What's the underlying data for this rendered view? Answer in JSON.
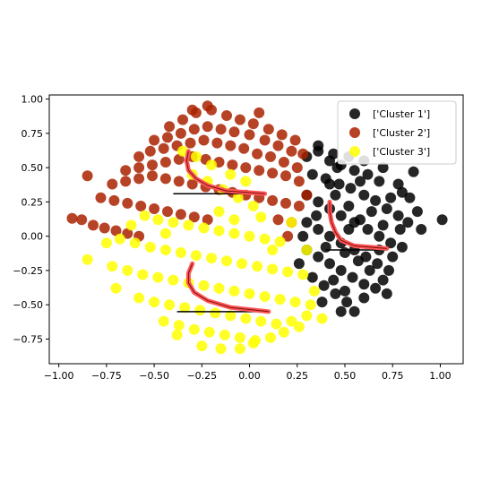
{
  "chart_data": {
    "type": "scatter",
    "title": "",
    "xlabel": "",
    "ylabel": "",
    "xlim": [
      -1.05,
      1.12
    ],
    "ylim": [
      -0.93,
      1.03
    ],
    "xticks": [
      -1.0,
      -0.75,
      -0.5,
      -0.25,
      0.0,
      0.25,
      0.5,
      0.75,
      1.0
    ],
    "xtick_labels": [
      "−1.00",
      "−0.75",
      "−0.50",
      "−0.25",
      "0.00",
      "0.25",
      "0.50",
      "0.75",
      "1.00"
    ],
    "yticks": [
      -0.75,
      -0.5,
      -0.25,
      0.0,
      0.25,
      0.5,
      0.75,
      1.0
    ],
    "ytick_labels": [
      "−0.75",
      "−0.50",
      "−0.25",
      "0.00",
      "0.25",
      "0.50",
      "0.75",
      "1.00"
    ],
    "grid": false,
    "legend_position": "top-right",
    "series": [
      {
        "name": "['Cluster 1']",
        "color": "#000000",
        "points": [
          [
            0.3,
            0.58
          ],
          [
            0.36,
            0.62
          ],
          [
            0.42,
            0.55
          ],
          [
            0.48,
            0.52
          ],
          [
            0.55,
            0.48
          ],
          [
            0.62,
            0.45
          ],
          [
            0.68,
            0.4
          ],
          [
            0.33,
            0.45
          ],
          [
            0.4,
            0.42
          ],
          [
            0.47,
            0.38
          ],
          [
            0.53,
            0.35
          ],
          [
            0.6,
            0.3
          ],
          [
            0.66,
            0.26
          ],
          [
            0.72,
            0.2
          ],
          [
            0.78,
            0.15
          ],
          [
            0.83,
            0.1
          ],
          [
            0.88,
            0.18
          ],
          [
            0.86,
            0.47
          ],
          [
            1.01,
            0.12
          ],
          [
            0.3,
            0.3
          ],
          [
            0.36,
            0.25
          ],
          [
            0.42,
            0.2
          ],
          [
            0.48,
            0.15
          ],
          [
            0.55,
            0.1
          ],
          [
            0.62,
            0.05
          ],
          [
            0.68,
            0.0
          ],
          [
            0.74,
            -0.05
          ],
          [
            0.8,
            -0.08
          ],
          [
            0.3,
            0.1
          ],
          [
            0.36,
            0.05
          ],
          [
            0.42,
            0.0
          ],
          [
            0.48,
            -0.05
          ],
          [
            0.55,
            -0.1
          ],
          [
            0.61,
            -0.15
          ],
          [
            0.67,
            -0.2
          ],
          [
            0.73,
            -0.25
          ],
          [
            0.3,
            -0.1
          ],
          [
            0.36,
            -0.15
          ],
          [
            0.42,
            -0.2
          ],
          [
            0.48,
            -0.25
          ],
          [
            0.54,
            -0.3
          ],
          [
            0.6,
            -0.35
          ],
          [
            0.66,
            -0.38
          ],
          [
            0.33,
            -0.3
          ],
          [
            0.39,
            -0.36
          ],
          [
            0.45,
            -0.42
          ],
          [
            0.51,
            -0.48
          ],
          [
            0.55,
            -0.55
          ],
          [
            0.6,
            -0.45
          ],
          [
            0.7,
            -0.32
          ],
          [
            0.75,
            -0.15
          ],
          [
            0.79,
            0.05
          ],
          [
            0.35,
            0.15
          ],
          [
            0.45,
            0.3
          ],
          [
            0.52,
            0.22
          ],
          [
            0.58,
            0.12
          ],
          [
            0.64,
            0.18
          ],
          [
            0.7,
            0.08
          ],
          [
            0.4,
            -0.08
          ],
          [
            0.5,
            -0.12
          ],
          [
            0.28,
            0.0
          ],
          [
            0.26,
            -0.2
          ],
          [
            0.38,
            -0.48
          ],
          [
            0.46,
            0.5
          ],
          [
            0.58,
            0.4
          ],
          [
            0.52,
            0.05
          ],
          [
            0.44,
            -0.32
          ],
          [
            0.63,
            -0.25
          ],
          [
            0.68,
            -0.1
          ],
          [
            0.74,
            0.28
          ],
          [
            0.8,
            0.32
          ],
          [
            0.57,
            -0.18
          ],
          [
            0.5,
            -0.4
          ],
          [
            0.42,
            0.38
          ],
          [
            0.36,
            0.66
          ],
          [
            0.44,
            0.6
          ],
          [
            0.52,
            0.58
          ],
          [
            0.6,
            0.55
          ],
          [
            0.7,
            0.5
          ],
          [
            0.78,
            0.38
          ],
          [
            0.84,
            0.28
          ],
          [
            0.9,
            0.05
          ],
          [
            0.72,
            -0.42
          ],
          [
            0.48,
            -0.55
          ]
        ]
      },
      {
        "name": "['Cluster 2']",
        "color": "#aa2200",
        "points": [
          [
            -0.42,
            0.8
          ],
          [
            -0.35,
            0.85
          ],
          [
            -0.28,
            0.9
          ],
          [
            -0.2,
            0.92
          ],
          [
            -0.12,
            0.88
          ],
          [
            -0.05,
            0.85
          ],
          [
            0.02,
            0.82
          ],
          [
            0.1,
            0.78
          ],
          [
            0.17,
            0.74
          ],
          [
            0.24,
            0.7
          ],
          [
            -0.5,
            0.7
          ],
          [
            -0.43,
            0.72
          ],
          [
            -0.36,
            0.75
          ],
          [
            -0.29,
            0.78
          ],
          [
            -0.22,
            0.8
          ],
          [
            -0.15,
            0.78
          ],
          [
            -0.08,
            0.76
          ],
          [
            0.0,
            0.74
          ],
          [
            0.08,
            0.7
          ],
          [
            0.15,
            0.66
          ],
          [
            0.22,
            0.62
          ],
          [
            -0.58,
            0.58
          ],
          [
            -0.52,
            0.62
          ],
          [
            -0.45,
            0.64
          ],
          [
            -0.38,
            0.66
          ],
          [
            -0.31,
            0.68
          ],
          [
            -0.24,
            0.7
          ],
          [
            -0.17,
            0.68
          ],
          [
            -0.1,
            0.66
          ],
          [
            -0.03,
            0.64
          ],
          [
            0.04,
            0.6
          ],
          [
            0.11,
            0.58
          ],
          [
            0.18,
            0.54
          ],
          [
            0.25,
            0.5
          ],
          [
            -0.65,
            0.48
          ],
          [
            -0.58,
            0.5
          ],
          [
            -0.51,
            0.52
          ],
          [
            -0.44,
            0.54
          ],
          [
            -0.37,
            0.56
          ],
          [
            -0.3,
            0.58
          ],
          [
            -0.23,
            0.56
          ],
          [
            -0.16,
            0.54
          ],
          [
            -0.09,
            0.52
          ],
          [
            -0.02,
            0.5
          ],
          [
            0.05,
            0.48
          ],
          [
            0.12,
            0.46
          ],
          [
            0.19,
            0.44
          ],
          [
            0.26,
            0.4
          ],
          [
            -0.72,
            0.38
          ],
          [
            -0.65,
            0.4
          ],
          [
            -0.58,
            0.42
          ],
          [
            -0.51,
            0.44
          ],
          [
            -0.44,
            0.42
          ],
          [
            -0.37,
            0.4
          ],
          [
            -0.3,
            0.38
          ],
          [
            -0.23,
            0.36
          ],
          [
            -0.16,
            0.34
          ],
          [
            -0.09,
            0.32
          ],
          [
            -0.02,
            0.3
          ],
          [
            0.05,
            0.28
          ],
          [
            0.12,
            0.26
          ],
          [
            0.19,
            0.24
          ],
          [
            0.26,
            0.22
          ],
          [
            -0.78,
            0.28
          ],
          [
            -0.71,
            0.26
          ],
          [
            -0.64,
            0.24
          ],
          [
            -0.57,
            0.22
          ],
          [
            -0.5,
            0.2
          ],
          [
            -0.43,
            0.18
          ],
          [
            -0.36,
            0.16
          ],
          [
            -0.29,
            0.14
          ],
          [
            -0.22,
            0.12
          ],
          [
            0.15,
            0.12
          ],
          [
            0.22,
            0.1
          ],
          [
            -0.85,
            0.44
          ],
          [
            -0.93,
            0.13
          ],
          [
            -0.88,
            0.12
          ],
          [
            -0.82,
            0.08
          ],
          [
            -0.76,
            0.06
          ],
          [
            -0.7,
            0.04
          ],
          [
            -0.64,
            0.02
          ],
          [
            -0.58,
            0.0
          ],
          [
            -0.3,
            0.92
          ],
          [
            -0.22,
            0.95
          ],
          [
            0.05,
            0.9
          ],
          [
            0.28,
            0.6
          ],
          [
            0.3,
            0.3
          ],
          [
            0.2,
            0.0
          ]
        ]
      },
      {
        "name": "['Cluster 3']",
        "color": "#ffff00",
        "points": [
          [
            -0.35,
            0.62
          ],
          [
            -0.28,
            0.58
          ],
          [
            -0.2,
            0.52
          ],
          [
            -0.1,
            0.45
          ],
          [
            -0.02,
            0.4
          ],
          [
            -0.3,
            0.45
          ],
          [
            -0.22,
            0.4
          ],
          [
            -0.14,
            0.34
          ],
          [
            -0.06,
            0.28
          ],
          [
            0.02,
            0.22
          ],
          [
            -0.55,
            0.15
          ],
          [
            -0.48,
            0.12
          ],
          [
            -0.4,
            0.1
          ],
          [
            -0.32,
            0.08
          ],
          [
            -0.24,
            0.06
          ],
          [
            -0.16,
            0.04
          ],
          [
            -0.08,
            0.02
          ],
          [
            0.0,
            0.0
          ],
          [
            0.08,
            -0.02
          ],
          [
            0.16,
            -0.04
          ],
          [
            -0.75,
            -0.05
          ],
          [
            -0.68,
            -0.02
          ],
          [
            -0.6,
            -0.05
          ],
          [
            -0.52,
            -0.08
          ],
          [
            -0.44,
            -0.1
          ],
          [
            -0.36,
            -0.12
          ],
          [
            -0.28,
            -0.14
          ],
          [
            -0.2,
            -0.16
          ],
          [
            -0.12,
            -0.18
          ],
          [
            -0.04,
            -0.2
          ],
          [
            0.04,
            -0.22
          ],
          [
            0.12,
            -0.24
          ],
          [
            0.2,
            -0.26
          ],
          [
            0.28,
            -0.28
          ],
          [
            -0.85,
            -0.17
          ],
          [
            -0.72,
            -0.22
          ],
          [
            -0.64,
            -0.25
          ],
          [
            -0.56,
            -0.28
          ],
          [
            -0.48,
            -0.3
          ],
          [
            -0.4,
            -0.32
          ],
          [
            -0.32,
            -0.34
          ],
          [
            -0.24,
            -0.36
          ],
          [
            -0.16,
            -0.38
          ],
          [
            -0.08,
            -0.4
          ],
          [
            0.0,
            -0.42
          ],
          [
            0.08,
            -0.44
          ],
          [
            0.16,
            -0.46
          ],
          [
            0.24,
            -0.48
          ],
          [
            0.32,
            -0.5
          ],
          [
            -0.58,
            -0.45
          ],
          [
            -0.5,
            -0.48
          ],
          [
            -0.42,
            -0.5
          ],
          [
            -0.34,
            -0.52
          ],
          [
            -0.26,
            -0.54
          ],
          [
            -0.18,
            -0.56
          ],
          [
            -0.1,
            -0.58
          ],
          [
            -0.02,
            -0.6
          ],
          [
            0.06,
            -0.62
          ],
          [
            0.14,
            -0.64
          ],
          [
            0.22,
            -0.62
          ],
          [
            0.3,
            -0.58
          ],
          [
            -0.45,
            -0.62
          ],
          [
            -0.37,
            -0.65
          ],
          [
            -0.29,
            -0.68
          ],
          [
            -0.21,
            -0.7
          ],
          [
            -0.13,
            -0.72
          ],
          [
            -0.05,
            -0.74
          ],
          [
            0.03,
            -0.76
          ],
          [
            0.11,
            -0.74
          ],
          [
            -0.25,
            -0.8
          ],
          [
            -0.15,
            -0.82
          ],
          [
            -0.05,
            -0.82
          ],
          [
            0.02,
            -0.78
          ],
          [
            0.18,
            -0.7
          ],
          [
            0.26,
            -0.66
          ],
          [
            0.38,
            -0.6
          ],
          [
            0.34,
            -0.4
          ],
          [
            0.3,
            -0.1
          ],
          [
            0.22,
            0.1
          ],
          [
            -0.62,
            0.08
          ],
          [
            -0.38,
            -0.72
          ],
          [
            -0.16,
            0.18
          ],
          [
            -0.08,
            0.12
          ],
          [
            0.06,
            0.14
          ],
          [
            -0.7,
            -0.38
          ],
          [
            0.12,
            -0.1
          ],
          [
            -0.44,
            0.02
          ]
        ]
      }
    ],
    "overlay_curves": {
      "color": "#ff5555",
      "baselines": [
        {
          "x": [
            -0.4,
            0.08
          ],
          "y": 0.31
        },
        {
          "x": [
            0.4,
            0.72
          ],
          "y": -0.1
        },
        {
          "x": [
            -0.38,
            0.1
          ],
          "y": -0.55
        }
      ],
      "curves": [
        {
          "points": [
            [
              -0.32,
              0.62
            ],
            [
              -0.33,
              0.55
            ],
            [
              -0.32,
              0.48
            ],
            [
              -0.28,
              0.42
            ],
            [
              -0.22,
              0.37
            ],
            [
              -0.12,
              0.33
            ],
            [
              0.08,
              0.31
            ]
          ]
        },
        {
          "points": [
            [
              0.42,
              0.25
            ],
            [
              0.42,
              0.18
            ],
            [
              0.43,
              0.1
            ],
            [
              0.45,
              0.03
            ],
            [
              0.48,
              -0.03
            ],
            [
              0.55,
              -0.07
            ],
            [
              0.72,
              -0.09
            ]
          ]
        },
        {
          "points": [
            [
              -0.3,
              -0.2
            ],
            [
              -0.32,
              -0.27
            ],
            [
              -0.32,
              -0.34
            ],
            [
              -0.29,
              -0.41
            ],
            [
              -0.22,
              -0.47
            ],
            [
              -0.1,
              -0.52
            ],
            [
              0.1,
              -0.55
            ]
          ]
        }
      ]
    }
  }
}
